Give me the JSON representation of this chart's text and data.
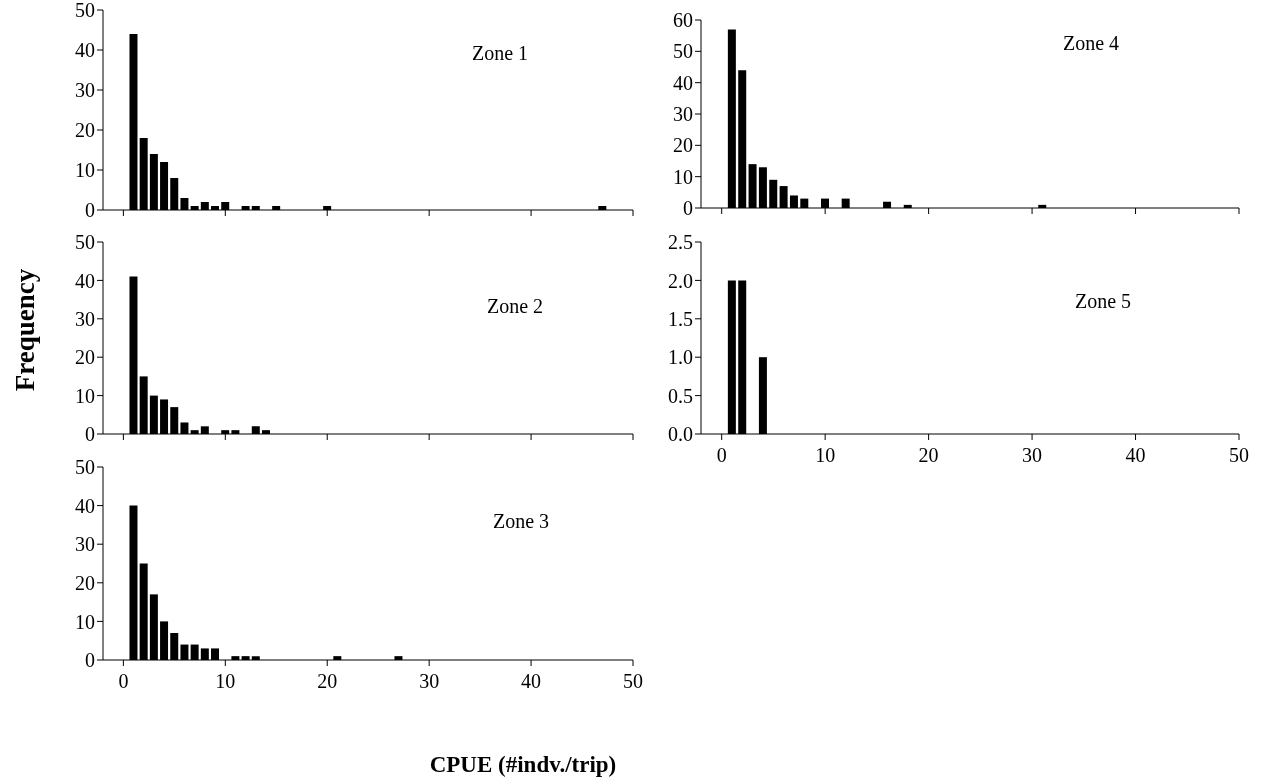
{
  "chart_data": [
    {
      "type": "bar",
      "title": "Zone 1",
      "color": "#000000",
      "x": [
        1,
        2,
        3,
        4,
        5,
        6,
        7,
        8,
        9,
        10,
        12,
        13,
        15,
        20,
        47
      ],
      "values": [
        44,
        18,
        14,
        12,
        8,
        3,
        1,
        2,
        1,
        2,
        1,
        1,
        1,
        1,
        1
      ],
      "xlim": [
        -2,
        50
      ],
      "xticks": [
        0,
        10,
        20,
        30,
        40,
        50
      ],
      "ylim": [
        0,
        50
      ],
      "yticks": [
        0,
        10,
        20,
        30,
        40,
        50
      ],
      "tick_labels": "y"
    },
    {
      "type": "bar",
      "title": "Zone 2",
      "ylabel": "Frequency",
      "color": "#000000",
      "x": [
        1,
        2,
        3,
        4,
        5,
        6,
        7,
        8,
        10,
        11,
        13,
        14
      ],
      "values": [
        41,
        15,
        10,
        9,
        7,
        3,
        1,
        2,
        1,
        1,
        2,
        1
      ],
      "xlim": [
        -2,
        50
      ],
      "xticks": [
        0,
        10,
        20,
        30,
        40,
        50
      ],
      "ylim": [
        0,
        50
      ],
      "yticks": [
        0,
        10,
        20,
        30,
        40,
        50
      ],
      "tick_labels": "y"
    },
    {
      "type": "bar",
      "title": "Zone 3",
      "xlabel": "CPUE (#indv./trip)",
      "color": "#000000",
      "x": [
        1,
        2,
        3,
        4,
        5,
        6,
        7,
        8,
        9,
        11,
        12,
        13,
        21,
        27
      ],
      "values": [
        40,
        25,
        17,
        10,
        7,
        4,
        4,
        3,
        3,
        1,
        1,
        1,
        1,
        1
      ],
      "xlim": [
        -2,
        50
      ],
      "xticks": [
        0,
        10,
        20,
        30,
        40,
        50
      ],
      "ylim": [
        0,
        50
      ],
      "yticks": [
        0,
        10,
        20,
        30,
        40,
        50
      ]
    },
    {
      "type": "bar",
      "title": "Zone 4",
      "color": "#000000",
      "x": [
        1,
        2,
        3,
        4,
        5,
        6,
        7,
        8,
        10,
        12,
        16,
        18,
        31
      ],
      "values": [
        57,
        44,
        14,
        13,
        9,
        7,
        4,
        3,
        3,
        3,
        2,
        1,
        1
      ],
      "xlim": [
        -2,
        50
      ],
      "xticks": [
        0,
        10,
        20,
        30,
        40,
        50
      ],
      "ylim": [
        0,
        60
      ],
      "yticks": [
        0,
        10,
        20,
        30,
        40,
        50,
        60
      ],
      "tick_labels": "y"
    },
    {
      "type": "bar",
      "title": "Zone 5",
      "color": "#000000",
      "x": [
        1,
        2,
        4
      ],
      "values": [
        2,
        2,
        1
      ],
      "xlim": [
        -2,
        50
      ],
      "xticks": [
        0,
        10,
        20,
        30,
        40,
        50
      ],
      "ylim": [
        0,
        2.5
      ],
      "yticks": [
        {
          "value": 0,
          "label": "0.0"
        },
        {
          "value": 0.5,
          "label": "0.5"
        },
        {
          "value": 1,
          "label": "1.0"
        },
        {
          "value": 1.5,
          "label": "1.5"
        },
        {
          "value": 2,
          "label": "2.0"
        },
        {
          "value": 2.5,
          "label": "2.5"
        }
      ]
    }
  ]
}
